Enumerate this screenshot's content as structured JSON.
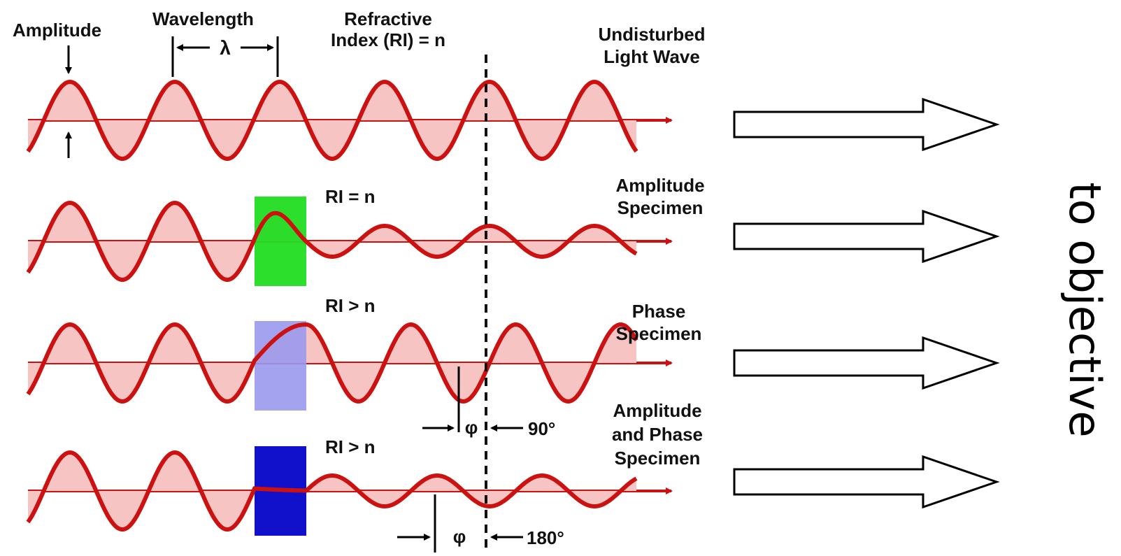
{
  "labels": {
    "amplitude": "Amplitude",
    "wavelength": "Wavelength",
    "lambda": "λ",
    "refractive_line1": "Refractive",
    "refractive_line2": "Index (RI) = n",
    "undisturbed_line1": "Undisturbed",
    "undisturbed_line2": "Light Wave",
    "amp_spec_line1": "Amplitude",
    "amp_spec_line2": "Specimen",
    "phase_spec_line1": "Phase",
    "phase_spec_line2": "Specimen",
    "ap_spec_line1": "Amplitude",
    "ap_spec_line2": "and Phase",
    "ap_spec_line3": "Specimen",
    "ri_eq": "RI = n",
    "ri_gt_1": "RI > n",
    "ri_gt_2": "RI > n",
    "phi_1": "φ",
    "phi_2": "φ",
    "deg_90": "90°",
    "deg_180": "180°",
    "to_objective": "to objective"
  },
  "colors": {
    "wave": "#cc1111",
    "wave_fill": "#f7c4c4",
    "axis": "#cc1111",
    "amplitude_block": "#22dd22",
    "phase_block": "#9999ee",
    "amp_phase_block": "#1111cc"
  }
}
